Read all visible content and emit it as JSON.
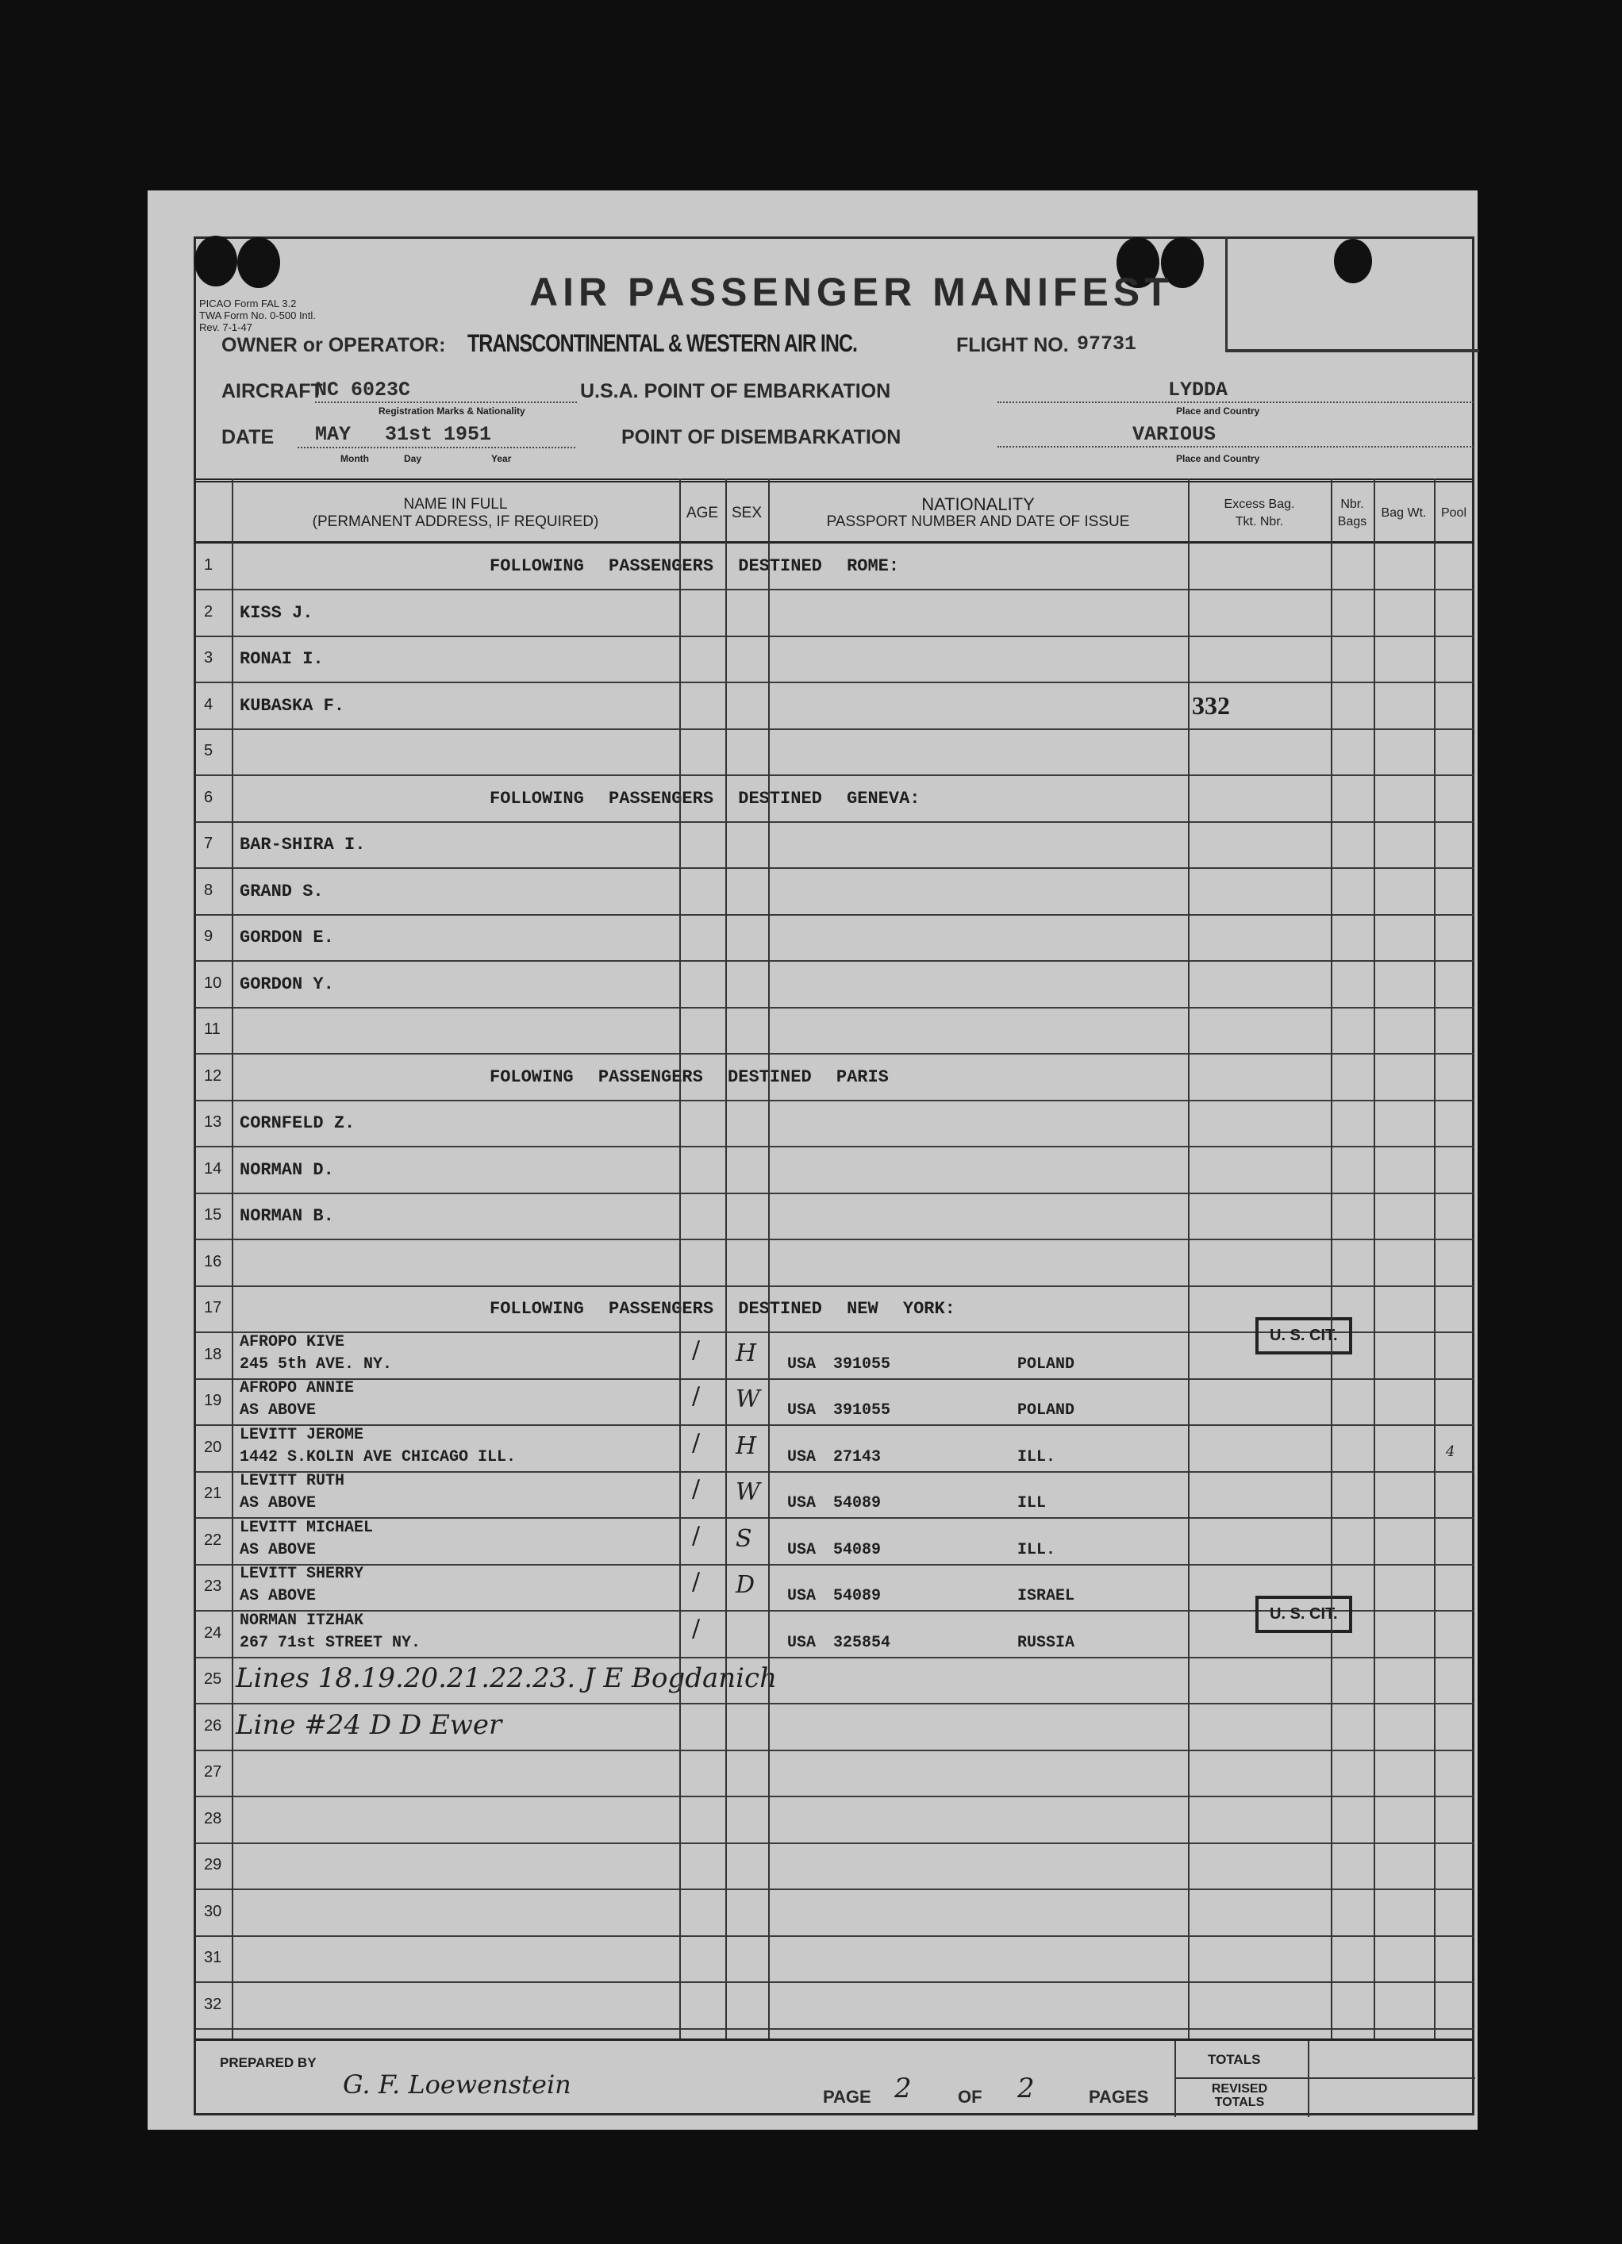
{
  "form": {
    "title": "AIR PASSENGER MANIFEST",
    "form_numbers": [
      "PICAO Form FAL 3.2",
      "TWA Form No. 0-500 Intl.",
      "Rev. 7-1-47"
    ],
    "owner_label": "OWNER or OPERATOR:",
    "owner_value": "TRANSCONTINENTAL & WESTERN AIR INC.",
    "flight_label": "FLIGHT NO.",
    "flight_value": "97731",
    "aircraft_label": "AIRCRAFT",
    "aircraft_value": "NC 6023C",
    "aircraft_sub": "Registration Marks & Nationality",
    "usa_label": "U.S.A. POINT OF EMBARKATION",
    "embarkation_value": "LYDDA",
    "place_country": "Place and Country",
    "date_label": "DATE",
    "date_month": "MAY",
    "date_day": "31st",
    "date_year": "1951",
    "month_label": "Month",
    "day_label": "Day",
    "year_label": "Year",
    "disembarkation_label": "POINT OF DISEMBARKATION",
    "disembarkation_value": "VARIOUS"
  },
  "columns": {
    "name": "NAME IN FULL",
    "name_sub": "(PERMANENT ADDRESS, IF REQUIRED)",
    "age": "AGE",
    "sex": "SEX",
    "nationality": "NATIONALITY",
    "nationality_sub": "PASSPORT NUMBER AND DATE OF ISSUE",
    "excess": "Excess Bag.",
    "excess_sub": "Tkt.   Nbr.",
    "nbr_bags": "Nbr. Bags",
    "bag_wt": "Bag Wt.",
    "pool": "Pool"
  },
  "rows": [
    {
      "num": "1",
      "heading": "FOLLOWING PASSENGERS DESTINED ROME:"
    },
    {
      "num": "2",
      "name": "KISS J."
    },
    {
      "num": "3",
      "name": "RONAI I."
    },
    {
      "num": "4",
      "name": "KUBASKA F.",
      "excess": "332"
    },
    {
      "num": "5"
    },
    {
      "num": "6",
      "heading": "FOLLOWING PASSENGERS DESTINED GENEVA:"
    },
    {
      "num": "7",
      "name": "BAR-SHIRA I."
    },
    {
      "num": "8",
      "name": "GRAND S."
    },
    {
      "num": "9",
      "name": "GORDON E."
    },
    {
      "num": "10",
      "name": "GORDON Y."
    },
    {
      "num": "11"
    },
    {
      "num": "12",
      "heading": "FOLOWING PASSENGERS DESTINED PARIS"
    },
    {
      "num": "13",
      "name": "CORNFELD Z."
    },
    {
      "num": "14",
      "name": "NORMAN D."
    },
    {
      "num": "15",
      "name": "NORMAN B."
    },
    {
      "num": "16"
    },
    {
      "num": "17",
      "heading": "FOLLOWING PASSENGERS DESTINED NEW YORK:"
    },
    {
      "num": "18",
      "name": "AFROPO KIVE",
      "address": "245 5th AVE. NY.",
      "sex": "H",
      "passport": "USA 391055",
      "nationality": "POLAND",
      "stamp": "U. S. CIT."
    },
    {
      "num": "19",
      "name": "AFROPO ANNIE",
      "address": "AS ABOVE",
      "sex": "W",
      "passport": "USA 391055",
      "nationality": "POLAND"
    },
    {
      "num": "20",
      "name": "LEVITT JEROME",
      "address": "1442 S.KOLIN AVE CHICAGO ILL.",
      "sex": "H",
      "passport": "USA 27143",
      "nationality": "ILL.",
      "bags": "4"
    },
    {
      "num": "21",
      "name": "LEVITT RUTH",
      "address": "AS ABOVE",
      "sex": "W",
      "passport": "USA 54089",
      "nationality": "ILL"
    },
    {
      "num": "22",
      "name": "LEVITT MICHAEL",
      "address": "AS ABOVE",
      "sex": "S",
      "passport": "USA 54089",
      "nationality": "ILL."
    },
    {
      "num": "23",
      "name": "LEVITT SHERRY",
      "address": "AS ABOVE",
      "sex": "D",
      "passport": "USA 54089",
      "nationality": "ISRAEL"
    },
    {
      "num": "24",
      "name": "NORMAN ITZHAK",
      "address": "267 71st STREET NY.",
      "passport": "USA 325854",
      "nationality": "RUSSIA",
      "stamp": "U. S. CIT."
    },
    {
      "num": "25",
      "handwritten": "Lines 18.19.20.21.22.23. J E Bogdanich"
    },
    {
      "num": "26",
      "handwritten": "Line #24 D D Ewer"
    },
    {
      "num": "27"
    },
    {
      "num": "28"
    },
    {
      "num": "29"
    },
    {
      "num": "30"
    },
    {
      "num": "31"
    },
    {
      "num": "32"
    }
  ],
  "footer": {
    "prepared_label": "PREPARED BY",
    "prepared_signature": "G. F. Loewenstein",
    "page_label": "PAGE",
    "page_num": "2",
    "of_label": "OF",
    "page_total": "2",
    "pages_label": "PAGES",
    "totals": "TOTALS",
    "revised_totals": "REVISED TOTALS"
  }
}
